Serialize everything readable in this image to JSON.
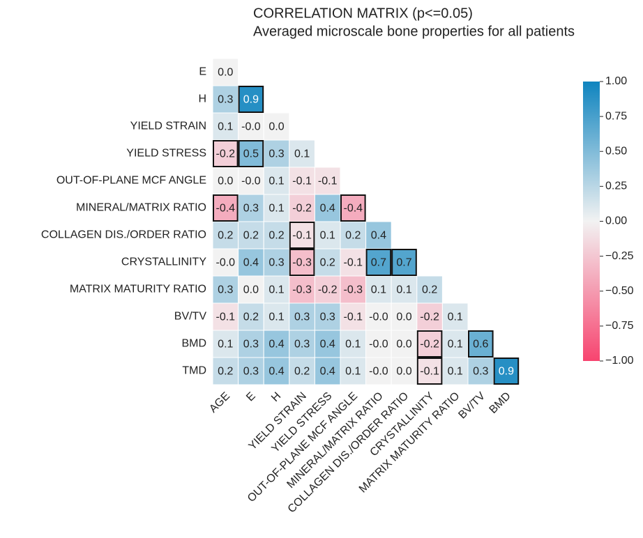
{
  "chart_data": {
    "type": "heatmap",
    "title": "CORRELATION MATRIX (p<=0.05)",
    "subtitle": "Averaged microscale bone properties for all patients",
    "rows": [
      "E",
      "H",
      "YIELD STRAIN",
      "YIELD STRESS",
      "OUT-OF-PLANE MCF ANGLE",
      "MINERAL/MATRIX RATIO",
      "COLLAGEN DIS./ORDER RATIO",
      "CRYSTALLINITY",
      "MATRIX MATURITY RATIO",
      "BV/TV",
      "BMD",
      "TMD"
    ],
    "columns": [
      "AGE",
      "E",
      "H",
      "YIELD STRAIN",
      "YIELD STRESS",
      "OUT-OF-PLANE MCF ANGLE",
      "MINERAL/MATRIX RATIO",
      "COLLAGEN DIS./ORDER RATIO",
      "CRYSTALLINITY",
      "MATRIX MATURITY RATIO",
      "BV/TV",
      "BMD"
    ],
    "values": [
      [
        0.0
      ],
      [
        0.3,
        0.9
      ],
      [
        0.1,
        -0.0,
        0.0
      ],
      [
        -0.2,
        0.5,
        0.3,
        0.1
      ],
      [
        0.0,
        -0.0,
        0.1,
        -0.1,
        -0.1
      ],
      [
        -0.4,
        0.3,
        0.1,
        -0.2,
        0.4,
        -0.4
      ],
      [
        0.2,
        0.2,
        0.2,
        -0.1,
        0.1,
        0.2,
        0.4
      ],
      [
        -0.0,
        0.4,
        0.3,
        -0.3,
        0.2,
        -0.1,
        0.7,
        0.7
      ],
      [
        0.3,
        0.0,
        0.1,
        -0.3,
        -0.2,
        -0.3,
        0.1,
        0.1,
        0.2
      ],
      [
        -0.1,
        0.2,
        0.1,
        0.3,
        0.3,
        -0.1,
        -0.0,
        0.0,
        -0.2,
        0.1
      ],
      [
        0.1,
        0.3,
        0.4,
        0.3,
        0.4,
        0.1,
        -0.0,
        0.0,
        -0.2,
        0.1,
        0.6
      ],
      [
        0.2,
        0.3,
        0.4,
        0.2,
        0.4,
        0.1,
        -0.0,
        0.0,
        -0.1,
        0.1,
        0.3,
        0.9
      ]
    ],
    "value_labels": [
      [
        "0.0"
      ],
      [
        "0.3",
        "0.9"
      ],
      [
        "0.1",
        "-0.0",
        "0.0"
      ],
      [
        "-0.2",
        "0.5",
        "0.3",
        "0.1"
      ],
      [
        "0.0",
        "-0.0",
        "0.1",
        "-0.1",
        "-0.1"
      ],
      [
        "-0.4",
        "0.3",
        "0.1",
        "-0.2",
        "0.4",
        "-0.4"
      ],
      [
        "0.2",
        "0.2",
        "0.2",
        "-0.1",
        "0.1",
        "0.2",
        "0.4"
      ],
      [
        "-0.0",
        "0.4",
        "0.3",
        "-0.3",
        "0.2",
        "-0.1",
        "0.7",
        "0.7"
      ],
      [
        "0.3",
        "0.0",
        "0.1",
        "-0.3",
        "-0.2",
        "-0.3",
        "0.1",
        "0.1",
        "0.2"
      ],
      [
        "-0.1",
        "0.2",
        "0.1",
        "0.3",
        "0.3",
        "-0.1",
        "-0.0",
        "0.0",
        "-0.2",
        "0.1"
      ],
      [
        "0.1",
        "0.3",
        "0.4",
        "0.3",
        "0.4",
        "0.1",
        "-0.0",
        "0.0",
        "-0.2",
        "0.1",
        "0.6"
      ],
      [
        "0.2",
        "0.3",
        "0.4",
        "0.2",
        "0.4",
        "0.1",
        "-0.0",
        "0.0",
        "-0.1",
        "0.1",
        "0.3",
        "0.9"
      ]
    ],
    "significant": [
      [
        false
      ],
      [
        false,
        true
      ],
      [
        false,
        false,
        false
      ],
      [
        true,
        true,
        false,
        false
      ],
      [
        false,
        false,
        false,
        false,
        false
      ],
      [
        true,
        false,
        false,
        false,
        false,
        true
      ],
      [
        false,
        false,
        false,
        true,
        false,
        false,
        false
      ],
      [
        false,
        false,
        false,
        true,
        false,
        false,
        true,
        true
      ],
      [
        false,
        false,
        false,
        false,
        false,
        false,
        false,
        false,
        false
      ],
      [
        false,
        false,
        false,
        false,
        false,
        false,
        false,
        false,
        false,
        false
      ],
      [
        false,
        false,
        false,
        false,
        false,
        false,
        false,
        false,
        true,
        false,
        true
      ],
      [
        false,
        false,
        false,
        false,
        false,
        false,
        false,
        false,
        true,
        false,
        false,
        true
      ]
    ],
    "cmap": [
      "#f7446f",
      "#f2f2f2",
      "#0f84bf"
    ],
    "vlim": [
      -1,
      1
    ],
    "vticks": [
      {
        "value": 1,
        "label": "1.00"
      },
      {
        "value": 0.75,
        "label": "0.75"
      },
      {
        "value": 0.5,
        "label": "0.50"
      },
      {
        "value": 0.25,
        "label": "0.25"
      },
      {
        "value": 0,
        "label": "0.00"
      },
      {
        "value": -0.25,
        "label": "−0.25"
      },
      {
        "value": -0.5,
        "label": "−0.50"
      },
      {
        "value": -0.75,
        "label": "−0.75"
      },
      {
        "value": -1,
        "label": "−1.00"
      }
    ]
  }
}
